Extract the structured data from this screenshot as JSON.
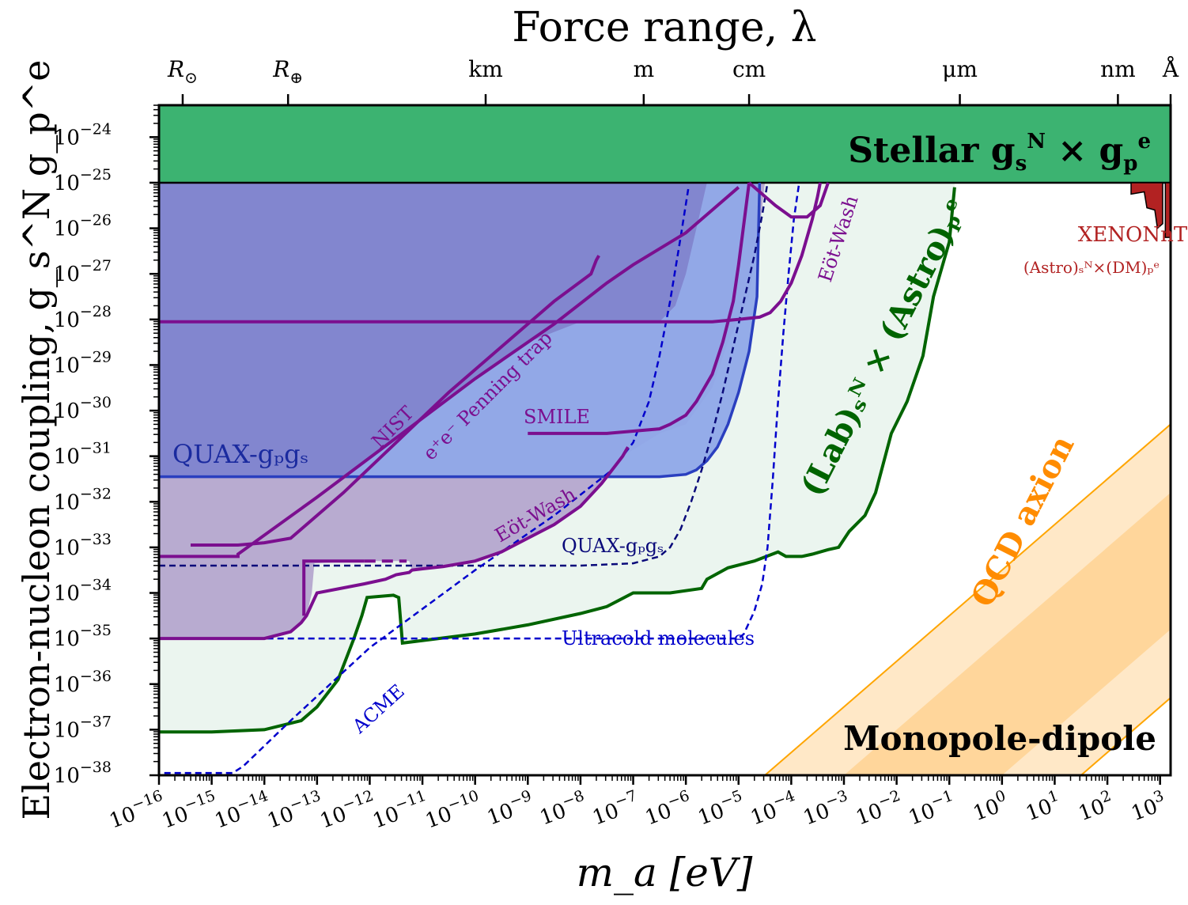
{
  "chart_data": {
    "type": "area",
    "title": "Force range, λ",
    "xlabel": "m_a [eV]",
    "ylabel": "Electron-nucleon coupling, g_s^N g_p^e",
    "x_scale": "log",
    "y_scale": "log",
    "xlim_exp": [
      -16,
      3.2
    ],
    "ylim_exp": [
      -38,
      -23.3
    ],
    "x_tick_exponents": [
      -16,
      -15,
      -14,
      -13,
      -12,
      -11,
      -10,
      -9,
      -8,
      -7,
      -6,
      -5,
      -4,
      -3,
      -2,
      -1,
      0,
      1,
      2,
      3
    ],
    "y_tick_exponents": [
      -38,
      -37,
      -36,
      -35,
      -34,
      -33,
      -32,
      -31,
      -30,
      -29,
      -28,
      -27,
      -26,
      -25,
      -24
    ],
    "x_tick_base": "10",
    "y_tick_base": "10",
    "top_axis": [
      {
        "label": "R",
        "sub": "⊙",
        "logm": -15.55
      },
      {
        "label": "R",
        "sub": "⊕",
        "logm": -13.55
      },
      {
        "label": "km",
        "logm": -9.8
      },
      {
        "label": "m",
        "logm": -6.8
      },
      {
        "label": "cm",
        "logm": -4.8
      },
      {
        "label": "μm",
        "logm": -0.8
      },
      {
        "label": "nm",
        "logm": 2.2
      },
      {
        "label": "Å",
        "logm": 3.2
      }
    ],
    "annotations": {
      "stellar": "Stellar g",
      "stellar_s": "s",
      "stellar_N": "N",
      "stellar_times": "×",
      "stellar_g2": "g",
      "stellar_p": "p",
      "stellar_e": "e",
      "monopole": "Monopole-dipole",
      "qcd": "QCD axion",
      "lab_astro": "(Lab)ₛᴺ × (Astro)ₚᵉ",
      "xenon": "XENONnT",
      "xenon_sub": "(Astro)ₛᴺ×(DM)ₚᵉ",
      "quax_solid": "QUAX-gₚgₛ",
      "quax_dashed": "QUAX-gₚgₛ",
      "ultracold": "Ultracold molecules",
      "acme": "ACME",
      "nist": "NIST",
      "penning": "e⁺e⁻ Penning trap",
      "smile": "SMILE",
      "eotwash_low": "Eöt-Wash",
      "eotwash_high": "Eöt-Wash"
    },
    "colors": {
      "stellar": "#3cb371",
      "lab_astro_fill": "#ebf5ef",
      "lab_astro_line": "#006400",
      "quax_fill": "#8fa8e8",
      "quax_line": "#2a3fbf",
      "purple": "#7b0f8f",
      "purple_fill": "#b3a3cc",
      "blue_dashed": "#0000cc",
      "navy_dashed": "#0a0a7a",
      "qcd": "#ffa500",
      "xenon": "#b22222"
    },
    "series": [
      {
        "key": "lab_astro",
        "x": [
          -16,
          -15,
          -14,
          -13.3,
          -13,
          -12.6,
          -12.3,
          -12.15,
          -12.05,
          -11.55,
          -11.45,
          -11.38,
          -10,
          -9,
          -8,
          -7.5,
          -7,
          -6.3,
          -5.7,
          -5.6,
          -5.2,
          -4.7,
          -4.25,
          -4.1,
          -3.8,
          -3.6,
          -3.3,
          -3.1,
          -2.9,
          -2.6,
          -2.4,
          -2.1,
          -1.8,
          -1.5,
          -1.3,
          -1.0,
          -0.9
        ],
        "y": [
          -37.05,
          -37.05,
          -37.0,
          -36.8,
          -36.5,
          -35.9,
          -35.0,
          -34.5,
          -34.1,
          -34.05,
          -34.1,
          -35.1,
          -34.9,
          -34.7,
          -34.45,
          -34.3,
          -34.0,
          -34.0,
          -33.9,
          -33.7,
          -33.45,
          -33.3,
          -33.1,
          -33.2,
          -33.2,
          -33.15,
          -33.05,
          -33.0,
          -32.65,
          -32.3,
          -31.8,
          -30.5,
          -29.8,
          -28.8,
          -27.5,
          -26.3,
          -25.1
        ]
      },
      {
        "key": "quax_solid",
        "x": [
          -16,
          -14,
          -12,
          -10,
          -8,
          -6.5,
          -6,
          -5.8,
          -5.6,
          -5.4,
          -5.2,
          -5.0,
          -4.8,
          -4.65,
          -4.6
        ],
        "y": [
          -31.45,
          -31.45,
          -31.45,
          -31.45,
          -31.45,
          -31.45,
          -31.4,
          -31.3,
          -31.1,
          -30.8,
          -30.3,
          -29.6,
          -28.7,
          -27.5,
          -25.0
        ]
      },
      {
        "key": "quax_dashed",
        "x": [
          -16,
          -12,
          -8,
          -7,
          -6.5,
          -6.3,
          -6.1,
          -5.9,
          -5.7,
          -5.5,
          -5.3,
          -5.1,
          -4.9,
          -4.7,
          -4.55,
          -4.45
        ],
        "y": [
          -33.4,
          -33.4,
          -33.4,
          -33.35,
          -33.2,
          -33.0,
          -32.6,
          -32.0,
          -31.3,
          -30.5,
          -29.6,
          -28.6,
          -27.6,
          -26.6,
          -25.7,
          -25.0
        ]
      },
      {
        "key": "ultracold",
        "x": [
          -15.9,
          -12,
          -8,
          -6,
          -5.0,
          -4.9,
          -4.7,
          -4.55,
          -4.45,
          -4.35,
          -4.25,
          -4.15,
          -4.05,
          -3.95,
          -3.85
        ],
        "y": [
          -35.0,
          -35.0,
          -35.0,
          -35.0,
          -35.0,
          -34.9,
          -34.4,
          -33.8,
          -33.0,
          -31.5,
          -29.8,
          -28.3,
          -27.0,
          -25.8,
          -25.0
        ]
      },
      {
        "key": "acme",
        "x": [
          -15.9,
          -14.6,
          -14.4,
          -13.5,
          -12,
          -10,
          -8.5,
          -7.4,
          -7.0,
          -6.7,
          -6.5,
          -6.3,
          -6.1,
          -5.95
        ],
        "y": [
          -37.95,
          -37.95,
          -37.8,
          -36.8,
          -35.2,
          -33.5,
          -32.3,
          -31.3,
          -30.7,
          -29.8,
          -28.8,
          -27.6,
          -26.2,
          -25.1
        ]
      },
      {
        "key": "nist",
        "x": [
          -15.4,
          -14.5,
          -14.0,
          -13.5,
          -13.2,
          -12.5,
          -11.5,
          -10.5,
          -9.5,
          -8.5,
          -7.8,
          -7.7,
          -7.65
        ],
        "y": [
          -32.95,
          -32.95,
          -32.9,
          -32.8,
          -32.5,
          -31.8,
          -30.7,
          -29.6,
          -28.6,
          -27.6,
          -27.0,
          -26.7,
          -26.6
        ]
      },
      {
        "key": "penning",
        "x": [
          -16,
          -14.5,
          -14.5,
          -13,
          -11.5,
          -10,
          -8.5,
          -7.5,
          -7.0,
          -6.0,
          -5.0
        ],
        "y": [
          -33.2,
          -33.2,
          -33.15,
          -31.9,
          -30.6,
          -29.3,
          -28.1,
          -27.2,
          -26.8,
          -26.1,
          -25.1
        ]
      },
      {
        "key": "eotwash_low",
        "x": [
          -16,
          -14.0,
          -13.5,
          -13.3,
          -13.2,
          -13.0,
          -12.1,
          -11.7,
          -11.5,
          -11.25,
          -11.2,
          -11.0,
          -10.6,
          -10.0,
          -9.5,
          -9.0,
          -8.5,
          -8.0,
          -7.6,
          -7.2,
          -7.1
        ],
        "y": [
          -35.0,
          -35.0,
          -34.85,
          -34.65,
          -34.5,
          -34.0,
          -33.8,
          -33.7,
          -33.6,
          -33.55,
          -33.5,
          -33.47,
          -33.42,
          -33.3,
          -33.1,
          -32.8,
          -32.5,
          -32.1,
          -31.6,
          -31.0,
          -30.8
        ]
      },
      {
        "key": "smile",
        "x": [
          -9.0,
          -7.5,
          -6.5,
          -6.3,
          -6.0,
          -5.8,
          -5.5,
          -5.3,
          -5.1,
          -5.0,
          -4.8
        ],
        "y": [
          -30.5,
          -30.5,
          -30.4,
          -30.3,
          -30.1,
          -29.8,
          -29.2,
          -28.5,
          -27.6,
          -26.8,
          -25.0
        ]
      },
      {
        "key": "purple_flat",
        "x": [
          -16,
          -10,
          -7,
          -5.5,
          -5.0,
          -4.6,
          -4.4,
          -4.2,
          -4.0,
          -3.8,
          -3.6,
          -3.5,
          -3.45
        ],
        "y": [
          -28.05,
          -28.05,
          -28.05,
          -28.05,
          -28.0,
          -27.95,
          -27.85,
          -27.6,
          -27.2,
          -26.6,
          -25.8,
          -25.3,
          -25.0
        ]
      },
      {
        "key": "eotwash_high",
        "x": [
          -4.8,
          -4.6,
          -4.3,
          -4.0,
          -3.7,
          -3.45,
          -3.3
        ],
        "y": [
          -25.0,
          -25.2,
          -25.5,
          -25.75,
          -25.75,
          -25.5,
          -25.0
        ]
      },
      {
        "key": "cuts",
        "x": [
          -16,
          -13.35,
          -13.25,
          -12.2
        ],
        "y": [
          -35.0,
          -35.0,
          -33.3,
          -33.3
        ]
      }
    ],
    "qcd_band": {
      "slope": 1.0,
      "lower_intercept_m_at_y-38": -4.5,
      "upper_intercept_m_at_y-38": 1.5
    },
    "xenon": {
      "x_start": 2.45,
      "y_top": -25.0,
      "y_bottom": -26.2
    },
    "stellar_band_y": [
      -25.0,
      -23.3
    ],
    "grid": false,
    "legend": "none"
  }
}
